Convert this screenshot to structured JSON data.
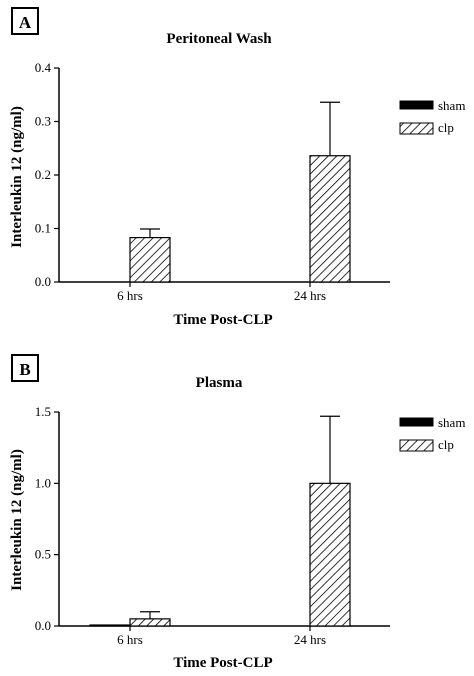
{
  "chart_data": [
    {
      "panel": "A",
      "type": "bar",
      "title": "Peritoneal Wash",
      "xlabel": "Time Post-CLP",
      "ylabel": "Interleukin 12 (ng/ml)",
      "categories": [
        "6 hrs",
        "24 hrs"
      ],
      "ylim": [
        0,
        0.4
      ],
      "yticks": [
        "0.0",
        "0.1",
        "0.2",
        "0.3",
        "0.4"
      ],
      "yticks_values": [
        0,
        0.1,
        0.2,
        0.3,
        0.4
      ],
      "legend_position": "right",
      "series": [
        {
          "name": "sham",
          "values": [
            0,
            0
          ],
          "errors": [
            0,
            0
          ],
          "fill": "solid",
          "color": "#000000"
        },
        {
          "name": "clp",
          "values": [
            0.083,
            0.236
          ],
          "errors": [
            0.016,
            0.1
          ],
          "fill": "hatch",
          "color": "#000000"
        }
      ]
    },
    {
      "panel": "B",
      "type": "bar",
      "title": "Plasma",
      "xlabel": "Time Post-CLP",
      "ylabel": "Interleukin 12 (ng/ml)",
      "categories": [
        "6 hrs",
        "24 hrs"
      ],
      "ylim": [
        0,
        1.5
      ],
      "yticks": [
        "0.0",
        "0.5",
        "1.0",
        "1.5"
      ],
      "yticks_values": [
        0,
        0.5,
        1.0,
        1.5
      ],
      "legend_position": "right",
      "series": [
        {
          "name": "sham",
          "values": [
            0.005,
            0
          ],
          "errors": [
            0,
            0
          ],
          "fill": "solid",
          "color": "#000000"
        },
        {
          "name": "clp",
          "values": [
            0.05,
            1.0
          ],
          "errors": [
            0.05,
            0.47
          ],
          "fill": "hatch",
          "color": "#000000"
        }
      ]
    }
  ]
}
